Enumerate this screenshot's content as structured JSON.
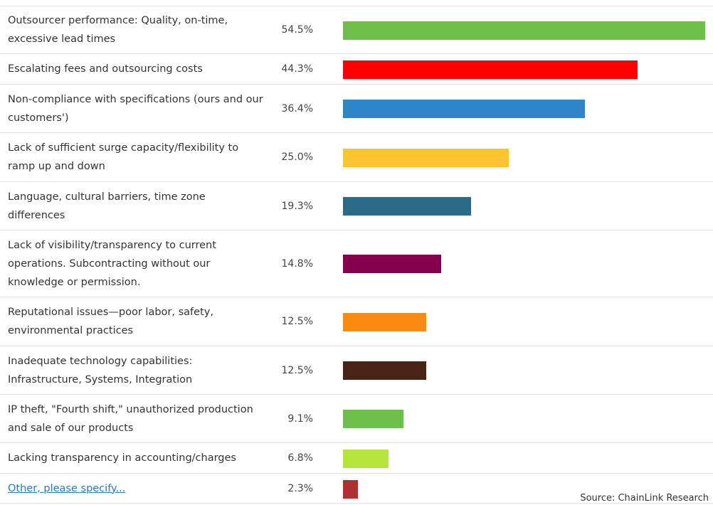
{
  "chart_data": {
    "type": "bar",
    "orientation": "horizontal",
    "categories": [
      "Outsourcer performance: Quality, on-time, excessive lead times",
      "Escalating fees and outsourcing costs",
      "Non-compliance with specifications (ours and our customers')",
      "Lack of sufficient surge capacity/flexibility to ramp up and down",
      "Language, cultural barriers, time zone differences",
      "Lack of visibility/transparency to current operations. Subcontracting without our knowledge or permission.",
      "Reputational issues—poor labor, safety, environmental practices",
      "Inadequate technology capabilities: Infrastructure, Systems, Integration",
      "IP theft, \"Fourth shift,\" unauthorized production and sale of our products",
      "Lacking transparency in accounting/charges",
      "Other, please specify..."
    ],
    "values": [
      54.5,
      44.3,
      36.4,
      25.0,
      19.3,
      14.8,
      12.5,
      12.5,
      9.1,
      6.8,
      2.3
    ],
    "value_labels": [
      "54.5%",
      "44.3%",
      "36.4%",
      "25.0%",
      "19.3%",
      "14.8%",
      "12.5%",
      "12.5%",
      "9.1%",
      "6.8%",
      "2.3%"
    ],
    "colors": [
      "#6cc04a",
      "#ff0000",
      "#2e86c8",
      "#fcc431",
      "#2a6b87",
      "#85004f",
      "#fa8a12",
      "#482414",
      "#6cc04a",
      "#b5e53a",
      "#b03030"
    ],
    "source": "Source: ChainLink Research"
  }
}
